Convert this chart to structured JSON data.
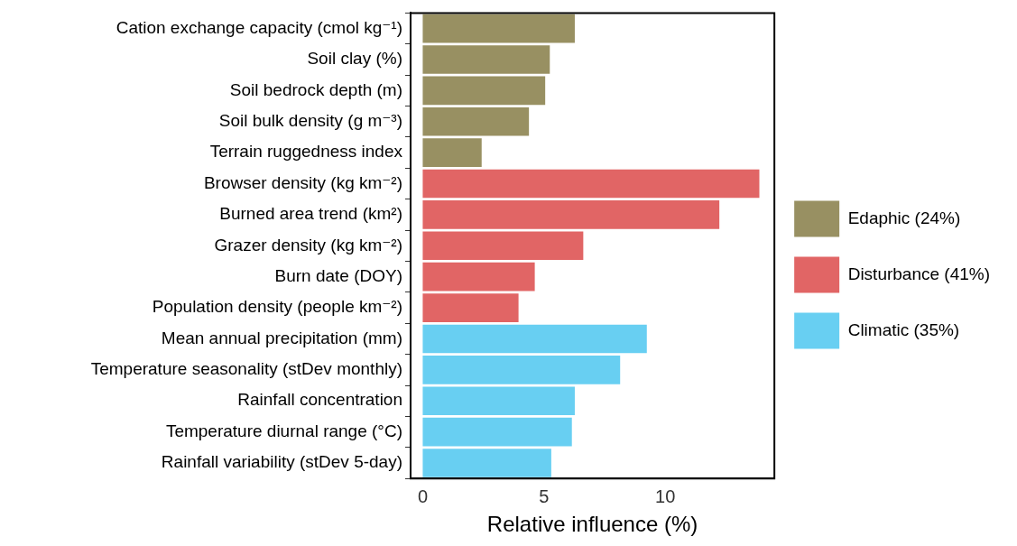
{
  "chart_data": {
    "type": "bar",
    "orientation": "horizontal",
    "xlabel": "Relative influence (%)",
    "categories": [
      "Cation exchange capacity (cmol kg⁻¹)",
      "Soil clay (%)",
      "Soil bedrock depth (m)",
      "Soil bulk density (g m⁻³)",
      "Terrain ruggedness index",
      "Browser density (kg km⁻²)",
      "Burned area trend (km²)",
      "Grazer density (kg km⁻²)",
      "Burn date (DOY)",
      "Population density (people km⁻²)",
      "Mean annual precipitation (mm)",
      "Temperature seasonality (stDev monthly)",
      "Rainfall concentration",
      "Temperature diurnal range (°C)",
      "Rainfall variability (stDev 5-day)"
    ],
    "series": [
      {
        "name": "Edaphic (24%)",
        "color": "#989062",
        "values": [
          6.27,
          5.24,
          5.05,
          4.38,
          2.43,
          null,
          null,
          null,
          null,
          null,
          null,
          null,
          null,
          null,
          null
        ]
      },
      {
        "name": "Disturbance (41%)",
        "color": "#e16565",
        "values": [
          null,
          null,
          null,
          null,
          null,
          13.88,
          12.23,
          6.62,
          4.62,
          3.95,
          null,
          null,
          null,
          null,
          null
        ]
      },
      {
        "name": "Climatic (35%)",
        "color": "#68cff2",
        "values": [
          null,
          null,
          null,
          null,
          null,
          null,
          null,
          null,
          null,
          null,
          9.24,
          8.14,
          6.27,
          6.15,
          5.3
        ]
      }
    ],
    "xlim": [
      -0.5,
      14.5
    ],
    "xticks": [
      0,
      5,
      10
    ],
    "grid": false,
    "legend": "right"
  }
}
